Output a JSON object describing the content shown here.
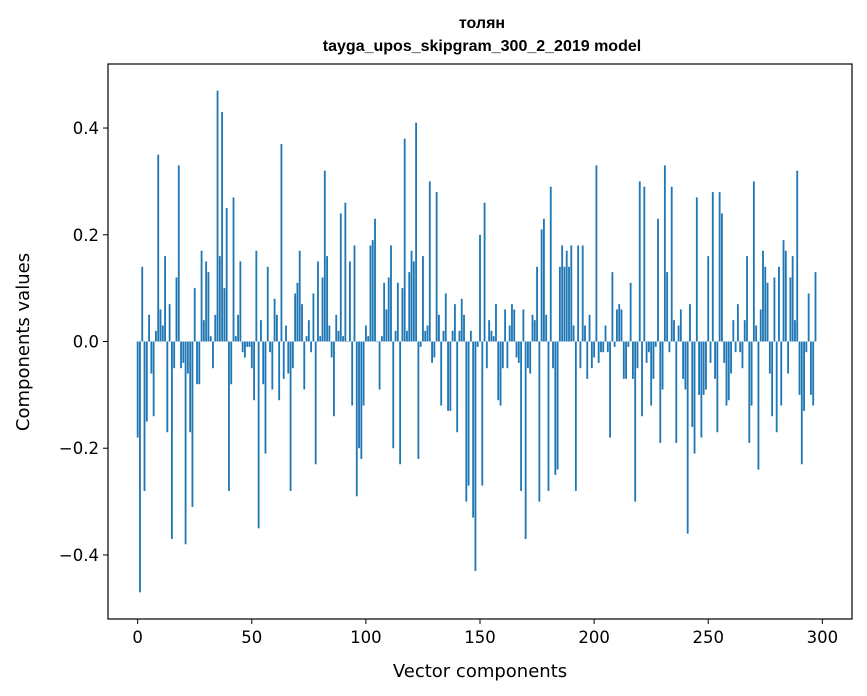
{
  "chart_data": {
    "type": "bar",
    "title": "толян",
    "subtitle": "tayga_upos_skipgram_300_2_2019 model",
    "xlabel": "Vector components",
    "ylabel": "Components values",
    "xlim": [
      -13,
      313
    ],
    "ylim": [
      -0.52,
      0.52
    ],
    "xticks": [
      0,
      50,
      100,
      150,
      200,
      250,
      300
    ],
    "xtick_labels": [
      "0",
      "50",
      "100",
      "150",
      "200",
      "250",
      "300"
    ],
    "yticks": [
      -0.4,
      -0.2,
      0.0,
      0.2,
      0.4
    ],
    "ytick_labels": [
      "−0.4",
      "−0.2",
      "0.0",
      "0.2",
      "0.4"
    ],
    "bar_color": "#1f77b4",
    "series": [
      {
        "name": "components",
        "x_start": 0,
        "values": [
          -0.18,
          -0.47,
          0.14,
          -0.28,
          -0.15,
          0.05,
          -0.06,
          -0.14,
          0.02,
          0.35,
          0.06,
          0.03,
          0.16,
          -0.17,
          0.07,
          -0.37,
          -0.05,
          0.12,
          0.33,
          -0.05,
          -0.04,
          -0.38,
          -0.06,
          -0.17,
          -0.31,
          0.1,
          -0.08,
          -0.08,
          0.17,
          0.04,
          0.15,
          0.13,
          0.01,
          -0.05,
          0.05,
          0.47,
          0.16,
          0.43,
          0.1,
          0.25,
          -0.28,
          -0.08,
          0.27,
          0.01,
          0.05,
          0.15,
          -0.02,
          -0.03,
          -0.01,
          -0.01,
          -0.05,
          -0.11,
          0.17,
          -0.35,
          0.04,
          -0.08,
          -0.21,
          0.14,
          -0.02,
          -0.09,
          0.08,
          0.05,
          -0.11,
          0.37,
          -0.07,
          0.03,
          -0.06,
          -0.28,
          -0.05,
          0.09,
          0.11,
          0.17,
          0.07,
          -0.09,
          0.01,
          0.04,
          -0.02,
          0.09,
          -0.23,
          0.15,
          0.01,
          0.12,
          0.32,
          0.16,
          0.03,
          -0.03,
          -0.14,
          0.05,
          0.02,
          0.24,
          0.01,
          0.26,
          0.0,
          0.15,
          -0.12,
          0.18,
          -0.29,
          -0.2,
          -0.22,
          -0.12,
          0.03,
          0.01,
          0.18,
          0.19,
          0.23,
          0.0,
          -0.09,
          0.01,
          0.11,
          0.06,
          0.12,
          0.18,
          -0.2,
          0.02,
          0.11,
          -0.23,
          0.1,
          0.38,
          0.02,
          0.13,
          0.17,
          0.15,
          0.41,
          -0.22,
          -0.01,
          0.16,
          0.02,
          0.03,
          0.3,
          -0.04,
          -0.03,
          0.28,
          0.05,
          -0.12,
          0.02,
          0.09,
          -0.13,
          -0.13,
          0.02,
          0.07,
          -0.17,
          0.02,
          0.08,
          0.05,
          -0.3,
          -0.27,
          0.02,
          -0.33,
          -0.43,
          -0.01,
          0.2,
          -0.27,
          0.26,
          -0.05,
          0.04,
          0.02,
          0.01,
          0.07,
          -0.11,
          -0.12,
          -0.05,
          0.06,
          -0.05,
          0.03,
          0.07,
          0.06,
          -0.03,
          -0.04,
          -0.28,
          0.06,
          -0.37,
          -0.05,
          -0.06,
          0.05,
          0.04,
          0.14,
          -0.3,
          0.21,
          0.23,
          0.05,
          -0.28,
          0.29,
          -0.05,
          -0.25,
          -0.24,
          0.14,
          0.18,
          0.14,
          0.17,
          0.14,
          0.18,
          0.03,
          -0.28,
          0.18,
          -0.05,
          0.18,
          0.03,
          -0.07,
          0.05,
          -0.05,
          -0.03,
          0.33,
          -0.04,
          -0.02,
          -0.02,
          0.03,
          -0.02,
          -0.18,
          0.13,
          -0.01,
          0.06,
          0.07,
          0.06,
          -0.07,
          -0.07,
          -0.01,
          0.11,
          -0.07,
          -0.3,
          -0.05,
          0.3,
          -0.14,
          0.29,
          -0.04,
          -0.02,
          -0.12,
          -0.07,
          -0.01,
          0.23,
          -0.19,
          -0.09,
          0.33,
          0.13,
          -0.02,
          0.29,
          0.04,
          -0.19,
          0.03,
          0.06,
          -0.07,
          -0.09,
          -0.36,
          0.07,
          -0.16,
          -0.21,
          0.27,
          -0.1,
          -0.18,
          -0.1,
          -0.09,
          0.16,
          -0.04,
          0.28,
          -0.07,
          -0.17,
          0.28,
          0.24,
          -0.04,
          -0.12,
          -0.11,
          -0.06,
          0.04,
          -0.02,
          0.07,
          -0.02,
          -0.05,
          0.04,
          0.16,
          -0.19,
          -0.12,
          0.3,
          0.03,
          -0.24,
          0.06,
          0.17,
          0.14,
          0.11,
          -0.06,
          -0.14,
          0.12,
          -0.17,
          0.14,
          -0.12,
          0.19,
          0.17,
          -0.06,
          0.12,
          0.16,
          0.04,
          0.32,
          -0.1,
          -0.23,
          -0.13,
          -0.02,
          0.09,
          -0.1,
          -0.12,
          0.13
        ]
      }
    ]
  }
}
